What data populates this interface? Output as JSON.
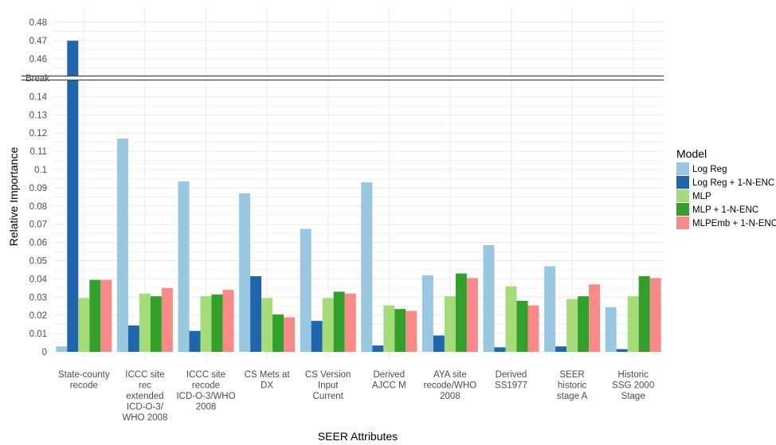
{
  "chart_data": {
    "type": "bar",
    "xlabel": "SEER Attributes",
    "ylabel": "Relative Importance",
    "legend_title": "Model",
    "legend_position": "right",
    "break_label": "Break",
    "grid": true,
    "ylim_lower": [
      0,
      0.15
    ],
    "ylim_upper": [
      0.455,
      0.48
    ],
    "lower_ticks": [
      "0",
      "0.01",
      "0.02",
      "0.03",
      "0.04",
      "0.05",
      "0.06",
      "0.07",
      "0.08",
      "0.09",
      "0.1",
      "0.11",
      "0.12",
      "0.13",
      "0.14"
    ],
    "upper_ticks": [
      "0.46",
      "0.47",
      "0.48"
    ],
    "categories": [
      [
        "State-county",
        "recode"
      ],
      [
        "ICCC site",
        "rec",
        "extended",
        "ICD-O-3/",
        "WHO 2008"
      ],
      [
        "ICCC site",
        "recode",
        "ICD-O-3/WHO",
        "2008"
      ],
      [
        "CS Mets at",
        "DX"
      ],
      [
        "CS Version",
        "Input",
        "Current"
      ],
      [
        "Derived",
        "AJCC M"
      ],
      [
        "AYA site",
        "recode/WHO",
        "2008"
      ],
      [
        "Derived",
        "SS1977"
      ],
      [
        "SEER",
        "historic",
        "stage A"
      ],
      [
        "Historic",
        "SSG 2000",
        "Stage"
      ]
    ],
    "series": [
      {
        "name": "Log Reg",
        "color": "#9ac7e0",
        "values": [
          0.003,
          0.117,
          0.0935,
          0.087,
          0.0675,
          0.093,
          0.042,
          0.0585,
          0.047,
          0.0245
        ]
      },
      {
        "name": "Log Reg + 1-N-ENC",
        "color": "#2166ac",
        "values": [
          0.47,
          0.0145,
          0.0115,
          0.0415,
          0.017,
          0.0035,
          0.009,
          0.0025,
          0.003,
          0.0015
        ]
      },
      {
        "name": "MLP",
        "color": "#a6db7a",
        "values": [
          0.0295,
          0.032,
          0.0305,
          0.0295,
          0.0295,
          0.0255,
          0.0305,
          0.036,
          0.029,
          0.0305
        ]
      },
      {
        "name": "MLP + 1-N-ENC",
        "color": "#33a02c",
        "values": [
          0.0395,
          0.0305,
          0.0315,
          0.0205,
          0.033,
          0.0235,
          0.043,
          0.028,
          0.0305,
          0.0415
        ]
      },
      {
        "name": "MLPEmb + 1-N-ENC",
        "color": "#f98a8a",
        "values": [
          0.0395,
          0.035,
          0.034,
          0.019,
          0.032,
          0.0225,
          0.0405,
          0.0255,
          0.037,
          0.0405
        ]
      }
    ]
  }
}
